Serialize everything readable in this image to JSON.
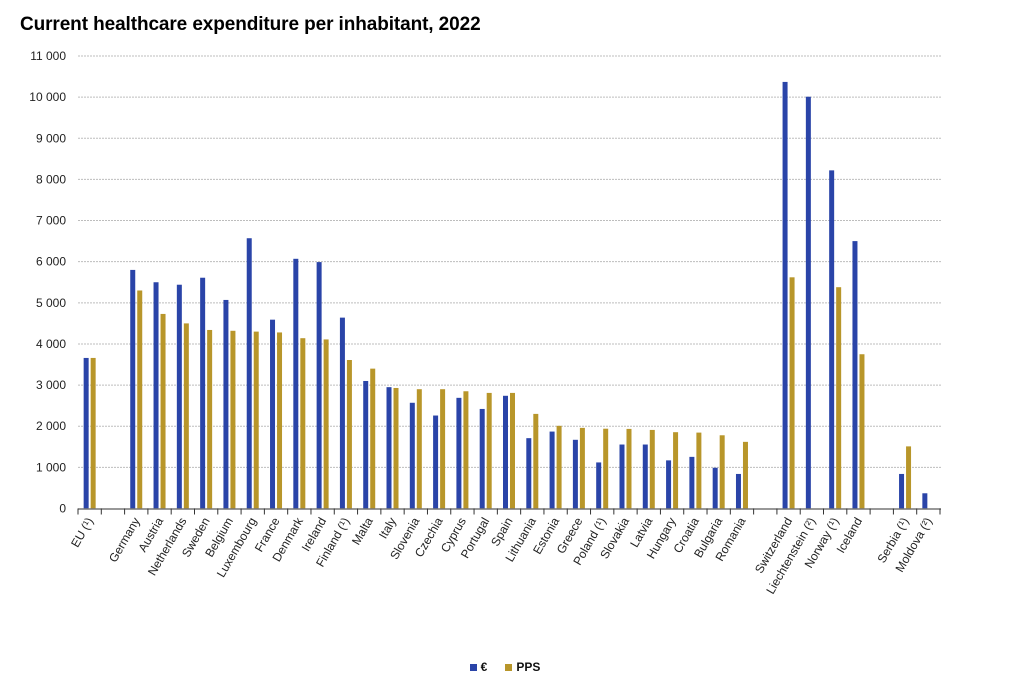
{
  "chart_data": {
    "type": "bar",
    "title": "Current healthcare expenditure per inhabitant, 2022",
    "xlabel": "",
    "ylabel": "",
    "ylim": [
      0,
      11000
    ],
    "yticks": [
      0,
      1000,
      2000,
      3000,
      4000,
      5000,
      6000,
      7000,
      8000,
      9000,
      10000,
      11000
    ],
    "ytick_labels": [
      "0",
      "1 000",
      "2 000",
      "3 000",
      "4 000",
      "5 000",
      "6 000",
      "7 000",
      "8 000",
      "9 000",
      "10 000",
      "11 000"
    ],
    "grid": true,
    "legend_position": "bottom-center",
    "categories": [
      "EU (¹)",
      "",
      "Germany",
      "Austria",
      "Netherlands",
      "Sweden",
      "Belgium",
      "Luxembourg",
      "France",
      "Denmark",
      "Ireland",
      "Finland (¹)",
      "Malta",
      "Italy",
      "Slovenia",
      "Czechia",
      "Cyprus",
      "Portugal",
      "Spain",
      "Lithuania",
      "Estonia",
      "Greece",
      "Poland (¹)",
      "Slovakia",
      "Latvia",
      "Hungary",
      "Croatia",
      "Bulgaria",
      "Romania",
      "",
      "Switzerland",
      "Liechtenstein (²)",
      "Norway (¹)",
      "Iceland",
      "",
      "Serbia (¹)",
      "Moldova (²)"
    ],
    "series": [
      {
        "name": "€",
        "color": "#2a44a8",
        "values": [
          3660,
          null,
          5800,
          5500,
          5440,
          5610,
          5070,
          6570,
          4590,
          6070,
          5990,
          4640,
          3100,
          2950,
          2570,
          2260,
          2690,
          2420,
          2740,
          1710,
          1870,
          1670,
          1120,
          1555,
          1555,
          1170,
          1255,
          990,
          840,
          null,
          10370,
          10010,
          8220,
          6500,
          null,
          840,
          370
        ]
      },
      {
        "name": "PPS",
        "color": "#b8962a",
        "values": [
          3660,
          null,
          5300,
          4730,
          4500,
          4340,
          4320,
          4300,
          4280,
          4140,
          4110,
          3610,
          3400,
          2930,
          2900,
          2900,
          2850,
          2810,
          2810,
          2300,
          2010,
          1960,
          1940,
          1935,
          1910,
          1855,
          1845,
          1780,
          1620,
          null,
          5620,
          null,
          5380,
          3750,
          null,
          1510,
          null
        ]
      }
    ]
  },
  "legend": {
    "items": [
      {
        "label": "€",
        "color": "#2a44a8"
      },
      {
        "label": "PPS",
        "color": "#b8962a"
      }
    ]
  }
}
